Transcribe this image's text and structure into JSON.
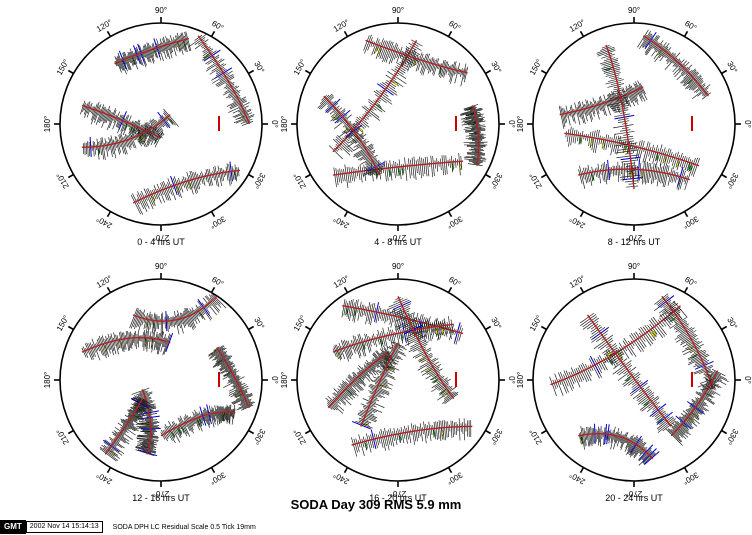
{
  "figure": {
    "title": "SODA Day 309 RMS 5.9 mm",
    "footer": {
      "logo": "GMT",
      "timestamp": "2002 Nov 14 15:14:13",
      "command": "SODA DPH LC Residual Scale 0.5 Tick 19mm"
    },
    "azimuth_labels": [
      "90°",
      "60°",
      "30°",
      "0°",
      "330°",
      "300°",
      "270°",
      "240°",
      "210°",
      "180°",
      "150°",
      "120°"
    ],
    "colors": {
      "track": "#b22222",
      "residual_spike": "#222222",
      "fill_positive": "#ffff00",
      "fill_negative": "#22bb22",
      "tick_blue": "#0000cc",
      "scale_bar": "#cc0000"
    },
    "panels": [
      {
        "label": "0 - 4 hrs UT"
      },
      {
        "label": "4 - 8 hrs UT"
      },
      {
        "label": "8 - 12 hrs UT"
      },
      {
        "label": "12 - 16 hrs UT"
      },
      {
        "label": "16 - 20 hrs UT"
      },
      {
        "label": "20 - 24 hrs UT"
      }
    ]
  }
}
